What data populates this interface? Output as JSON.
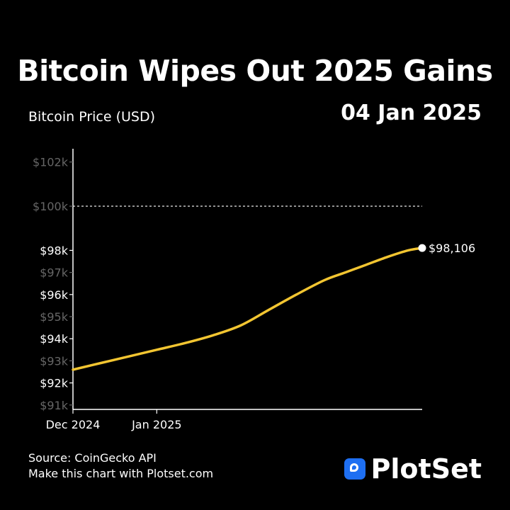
{
  "header": {
    "title": "Bitcoin Wipes Out 2025 Gains",
    "ylabel": "Bitcoin Price (USD)",
    "date": "04 Jan 2025"
  },
  "colors": {
    "background": "#000000",
    "line": "#f2c531",
    "axis": "#ffffff",
    "brand_icon": "#1e6ff2"
  },
  "chart_data": {
    "type": "line",
    "title": "Bitcoin Wipes Out 2025 Gains",
    "ylabel": "Bitcoin Price (USD)",
    "xlabel": "",
    "x_ticks": [
      "Dec 2024",
      "Jan 2025"
    ],
    "y_ticks": [
      {
        "value": 91000,
        "label": "$91k",
        "dim": true
      },
      {
        "value": 92000,
        "label": "$92k",
        "dim": false
      },
      {
        "value": 93000,
        "label": "$93k",
        "dim": true
      },
      {
        "value": 94000,
        "label": "$94k",
        "dim": false
      },
      {
        "value": 95000,
        "label": "$95k",
        "dim": true
      },
      {
        "value": 96000,
        "label": "$96k",
        "dim": false
      },
      {
        "value": 97000,
        "label": "$97k",
        "dim": true
      },
      {
        "value": 98000,
        "label": "$98k",
        "dim": false
      },
      {
        "value": 100000,
        "label": "$100k",
        "dim": true
      },
      {
        "value": 102000,
        "label": "$102k",
        "dim": true
      }
    ],
    "reference_line": {
      "value": 100000,
      "style": "dashed"
    },
    "end_label": "$98,106",
    "ylim": [
      90800,
      102600
    ],
    "xlim": [
      0,
      100
    ],
    "x_tick_positions": [
      0,
      24
    ],
    "series": [
      {
        "points": [
          [
            0,
            92600
          ],
          [
            8,
            92900
          ],
          [
            16,
            93200
          ],
          [
            24,
            93500
          ],
          [
            32,
            93800
          ],
          [
            40,
            94150
          ],
          [
            48,
            94600
          ],
          [
            56,
            95300
          ],
          [
            64,
            96000
          ],
          [
            72,
            96650
          ],
          [
            78,
            97000
          ],
          [
            84,
            97350
          ],
          [
            90,
            97700
          ],
          [
            96,
            98000
          ],
          [
            100,
            98106
          ]
        ]
      }
    ]
  },
  "footer": {
    "source": "Source: CoinGecko API",
    "cta": "Make this chart with Plotset.com"
  },
  "brand": {
    "name": "PlotSet",
    "icon": "plotset-logo-icon"
  }
}
